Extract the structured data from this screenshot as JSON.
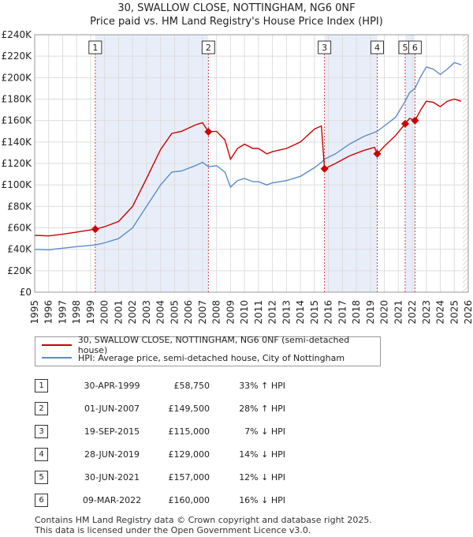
{
  "title_line1": "30, SWALLOW CLOSE, NOTTINGHAM, NG6 0NF",
  "title_line2": "Price paid vs. HM Land Registry's House Price Index (HPI)",
  "chart_data": {
    "type": "line",
    "x_range": [
      1995,
      2026
    ],
    "ylim": [
      0,
      240000
    ],
    "y_ticks": [
      0,
      20000,
      40000,
      60000,
      80000,
      100000,
      120000,
      140000,
      160000,
      180000,
      200000,
      220000,
      240000
    ],
    "y_tick_labels": [
      "£0",
      "£20K",
      "£40K",
      "£60K",
      "£80K",
      "£100K",
      "£120K",
      "£140K",
      "£160K",
      "£180K",
      "£200K",
      "£220K",
      "£240K"
    ],
    "x_ticks": [
      1995,
      1996,
      1997,
      1998,
      1999,
      2000,
      2001,
      2002,
      2003,
      2004,
      2005,
      2006,
      2007,
      2008,
      2009,
      2010,
      2011,
      2012,
      2013,
      2014,
      2015,
      2016,
      2017,
      2018,
      2019,
      2020,
      2021,
      2022,
      2023,
      2024,
      2025,
      2026
    ],
    "x_tick_labels": [
      "1995",
      "1996",
      "1997",
      "1998",
      "1999",
      "2000",
      "2001",
      "2002",
      "2003",
      "2004",
      "2005",
      "2006",
      "2007",
      "2008",
      "2009",
      "2010",
      "2011",
      "2012",
      "2013",
      "2014",
      "2015",
      "2016",
      "2017",
      "2018",
      "2019",
      "2020",
      "2021",
      "2022",
      "2023",
      "2024",
      "2025",
      "2026"
    ],
    "data_end_year": 2025.6,
    "shaded_spans": [
      [
        1999.33,
        2007.42
      ],
      [
        2015.72,
        2019.49
      ],
      [
        2021.49,
        2022.19
      ]
    ],
    "series": [
      {
        "name": "30, SWALLOW CLOSE, NOTTINGHAM, NG6 0NF (semi-detached house)",
        "color": "#cc0000",
        "points": [
          [
            1995.0,
            53000
          ],
          [
            1996.0,
            52500
          ],
          [
            1997.0,
            54000
          ],
          [
            1998.0,
            56000
          ],
          [
            1999.33,
            58750
          ],
          [
            2000.0,
            61000
          ],
          [
            2001.0,
            66000
          ],
          [
            2002.0,
            80000
          ],
          [
            2003.0,
            106000
          ],
          [
            2004.0,
            133000
          ],
          [
            2004.8,
            148000
          ],
          [
            2005.5,
            150000
          ],
          [
            2006.5,
            156000
          ],
          [
            2007.0,
            158000
          ],
          [
            2007.42,
            149500
          ],
          [
            2008.0,
            150000
          ],
          [
            2008.6,
            142000
          ],
          [
            2009.0,
            124000
          ],
          [
            2009.5,
            134000
          ],
          [
            2010.0,
            138000
          ],
          [
            2010.6,
            134000
          ],
          [
            2011.0,
            134000
          ],
          [
            2011.6,
            129000
          ],
          [
            2012.0,
            131000
          ],
          [
            2013.0,
            134000
          ],
          [
            2014.0,
            140000
          ],
          [
            2015.0,
            152000
          ],
          [
            2015.5,
            155000
          ],
          [
            2015.72,
            115000
          ],
          [
            2016.5,
            120000
          ],
          [
            2017.5,
            127000
          ],
          [
            2018.5,
            132000
          ],
          [
            2019.3,
            135000
          ],
          [
            2019.49,
            129000
          ],
          [
            2020.0,
            136000
          ],
          [
            2020.8,
            146000
          ],
          [
            2021.49,
            157000
          ],
          [
            2021.8,
            162000
          ],
          [
            2022.19,
            160000
          ],
          [
            2022.6,
            170000
          ],
          [
            2023.0,
            178000
          ],
          [
            2023.5,
            177000
          ],
          [
            2024.0,
            173000
          ],
          [
            2024.5,
            178000
          ],
          [
            2025.0,
            180000
          ],
          [
            2025.5,
            178000
          ]
        ]
      },
      {
        "name": "HPI: Average price, semi-detached house, City of Nottingham",
        "color": "#5b8cc9",
        "points": [
          [
            1995.0,
            40000
          ],
          [
            1996.0,
            39500
          ],
          [
            1997.0,
            41000
          ],
          [
            1998.0,
            42500
          ],
          [
            1999.33,
            44000
          ],
          [
            2000.0,
            46000
          ],
          [
            2001.0,
            50000
          ],
          [
            2002.0,
            60000
          ],
          [
            2003.0,
            80000
          ],
          [
            2004.0,
            100000
          ],
          [
            2004.8,
            112000
          ],
          [
            2005.5,
            113000
          ],
          [
            2006.5,
            118000
          ],
          [
            2007.0,
            121000
          ],
          [
            2007.42,
            117000
          ],
          [
            2008.0,
            118000
          ],
          [
            2008.6,
            112000
          ],
          [
            2009.0,
            98000
          ],
          [
            2009.5,
            104000
          ],
          [
            2010.0,
            106000
          ],
          [
            2010.6,
            103000
          ],
          [
            2011.0,
            103000
          ],
          [
            2011.6,
            100000
          ],
          [
            2012.0,
            102000
          ],
          [
            2013.0,
            104000
          ],
          [
            2014.0,
            108000
          ],
          [
            2015.0,
            116000
          ],
          [
            2015.5,
            121000
          ],
          [
            2015.72,
            124000
          ],
          [
            2016.5,
            129000
          ],
          [
            2017.5,
            138000
          ],
          [
            2018.5,
            145000
          ],
          [
            2019.3,
            149000
          ],
          [
            2019.49,
            150000
          ],
          [
            2020.0,
            155000
          ],
          [
            2020.8,
            163000
          ],
          [
            2021.49,
            178000
          ],
          [
            2021.8,
            186000
          ],
          [
            2022.19,
            190000
          ],
          [
            2022.6,
            201000
          ],
          [
            2023.0,
            210000
          ],
          [
            2023.5,
            208000
          ],
          [
            2024.0,
            203000
          ],
          [
            2024.5,
            208000
          ],
          [
            2025.0,
            214000
          ],
          [
            2025.5,
            212000
          ]
        ]
      }
    ],
    "markers": [
      {
        "label": "1",
        "x": 1999.33,
        "y": 58750
      },
      {
        "label": "2",
        "x": 2007.42,
        "y": 149500
      },
      {
        "label": "3",
        "x": 2015.72,
        "y": 115000
      },
      {
        "label": "4",
        "x": 2019.49,
        "y": 129000
      },
      {
        "label": "5",
        "x": 2021.49,
        "y": 157000
      },
      {
        "label": "6",
        "x": 2022.19,
        "y": 160000
      }
    ]
  },
  "legend": {
    "property_label": "30, SWALLOW CLOSE, NOTTINGHAM, NG6 0NF (semi-detached house)",
    "hpi_label": "HPI: Average price, semi-detached house, City of Nottingham",
    "property_color": "#cc0000",
    "hpi_color": "#5b8cc9"
  },
  "sales": [
    {
      "num": "1",
      "date": "30-APR-1999",
      "price": "£58,750",
      "pct": "33% ↑ HPI"
    },
    {
      "num": "2",
      "date": "01-JUN-2007",
      "price": "£149,500",
      "pct": "28% ↑ HPI"
    },
    {
      "num": "3",
      "date": "19-SEP-2015",
      "price": "£115,000",
      "pct": "7% ↓ HPI"
    },
    {
      "num": "4",
      "date": "28-JUN-2019",
      "price": "£129,000",
      "pct": "14% ↓ HPI"
    },
    {
      "num": "5",
      "date": "30-JUN-2021",
      "price": "£157,000",
      "pct": "12% ↓ HPI"
    },
    {
      "num": "6",
      "date": "09-MAR-2022",
      "price": "£160,000",
      "pct": "16% ↓ HPI"
    }
  ],
  "footer_line1": "Contains HM Land Registry data © Crown copyright and database right 2025.",
  "footer_line2": "This data is licensed under the Open Government Licence v3.0."
}
